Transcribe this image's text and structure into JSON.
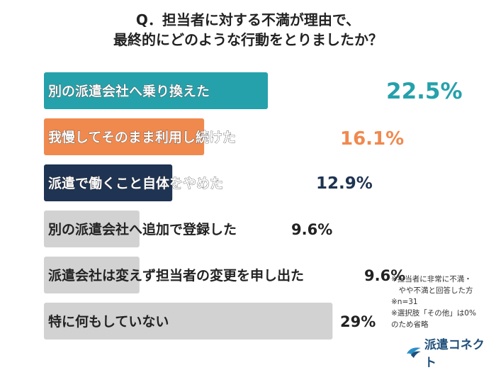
{
  "title": {
    "line1": "Q．担当者に対する不満が理由で、",
    "line2": "最終的にどのような行動をとりましたか？"
  },
  "chart_data": {
    "type": "bar",
    "orientation": "horizontal",
    "categories": [
      "別の派遣会社へ乗り換えた",
      "我慢してそのまま利用し続けた",
      "派遣で働くこと自体をやめた",
      "別の派遣会社へ追加で登録した",
      "派遣会社は変えず担当者の変更を申し出た",
      "特に何もしていない"
    ],
    "values": [
      22.5,
      16.1,
      12.9,
      9.6,
      9.6,
      29
    ],
    "value_labels": [
      "22.5%",
      "16.1%",
      "12.9%",
      "9.6%",
      "9.6%",
      "29%"
    ],
    "colors": [
      "#25a1ab",
      "#f0894e",
      "#1f3352",
      "#d2d2d2",
      "#d2d2d2",
      "#d2d2d2"
    ],
    "value_colors": [
      "#25a1ab",
      "#f0894e",
      "#1f3352",
      "#222222",
      "#222222",
      "#222222"
    ],
    "title": "",
    "xlabel": "",
    "ylabel": "",
    "grid": false,
    "legend": "none"
  },
  "notes": [
    "※担当者に非常に不満・",
    "　やや不満と回答した方",
    "※n=31",
    "※選択肢「その他」は0%",
    "のため省略"
  ],
  "logo": {
    "text": "派遣コネクト",
    "icon": "bird-logo-icon",
    "color": "#1f4e79"
  }
}
